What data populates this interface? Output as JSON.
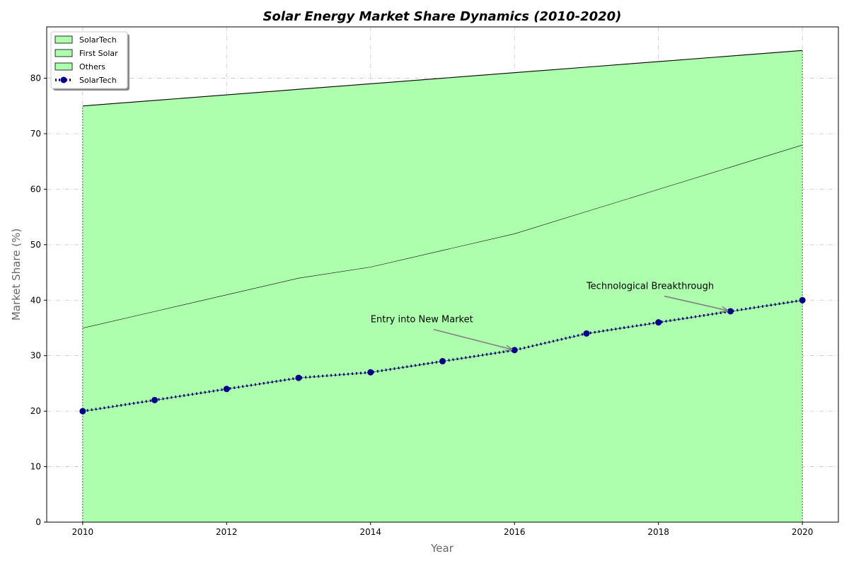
{
  "chart_data": {
    "type": "area",
    "title": "Solar Energy Market Share Dynamics (2010-2020)",
    "xlabel": "Year",
    "ylabel": "Market Share (%)",
    "xlim": [
      2009.5,
      2020.5
    ],
    "ylim": [
      0,
      89.25
    ],
    "x_ticks": [
      2010,
      2012,
      2014,
      2016,
      2018,
      2020
    ],
    "y_ticks": [
      0,
      10,
      20,
      30,
      40,
      50,
      60,
      70,
      80
    ],
    "grid": true,
    "legend_position": "top-left",
    "x": [
      2010,
      2011,
      2012,
      2013,
      2014,
      2015,
      2016,
      2017,
      2018,
      2019,
      2020
    ],
    "stacked_upper_values": {
      "SolarTech": [
        20,
        22,
        24,
        26,
        27,
        29,
        31,
        34,
        36,
        38,
        40
      ],
      "First Solar": [
        35,
        38,
        41,
        44,
        46,
        49,
        52,
        56,
        60,
        64,
        68
      ],
      "Others": [
        75,
        76,
        77,
        78,
        79,
        80,
        81,
        82,
        83,
        84,
        85
      ]
    },
    "series": [
      {
        "name": "SolarTech",
        "kind": "area",
        "color": "#adffad"
      },
      {
        "name": "First Solar",
        "kind": "area",
        "color": "#adffad"
      },
      {
        "name": "Others",
        "kind": "area",
        "color": "#adffad"
      },
      {
        "name": "SolarTech",
        "kind": "line",
        "color": "#00008b",
        "style": "dotted-with-circle-markers",
        "values": [
          20,
          22,
          24,
          26,
          27,
          29,
          31,
          34,
          36,
          38,
          40
        ]
      }
    ],
    "annotations": [
      {
        "text": "Entry into New Market",
        "x": 2014,
        "y": 36,
        "target_x": 2016,
        "target_y": 31
      },
      {
        "text": "Technological Breakthrough",
        "x": 2017,
        "y": 42,
        "target_x": 2019,
        "target_y": 38
      }
    ]
  },
  "colors": {
    "area_fill": "#adffad",
    "area_edge": "#000000",
    "line": "#00008b",
    "arrow": "#808080"
  }
}
